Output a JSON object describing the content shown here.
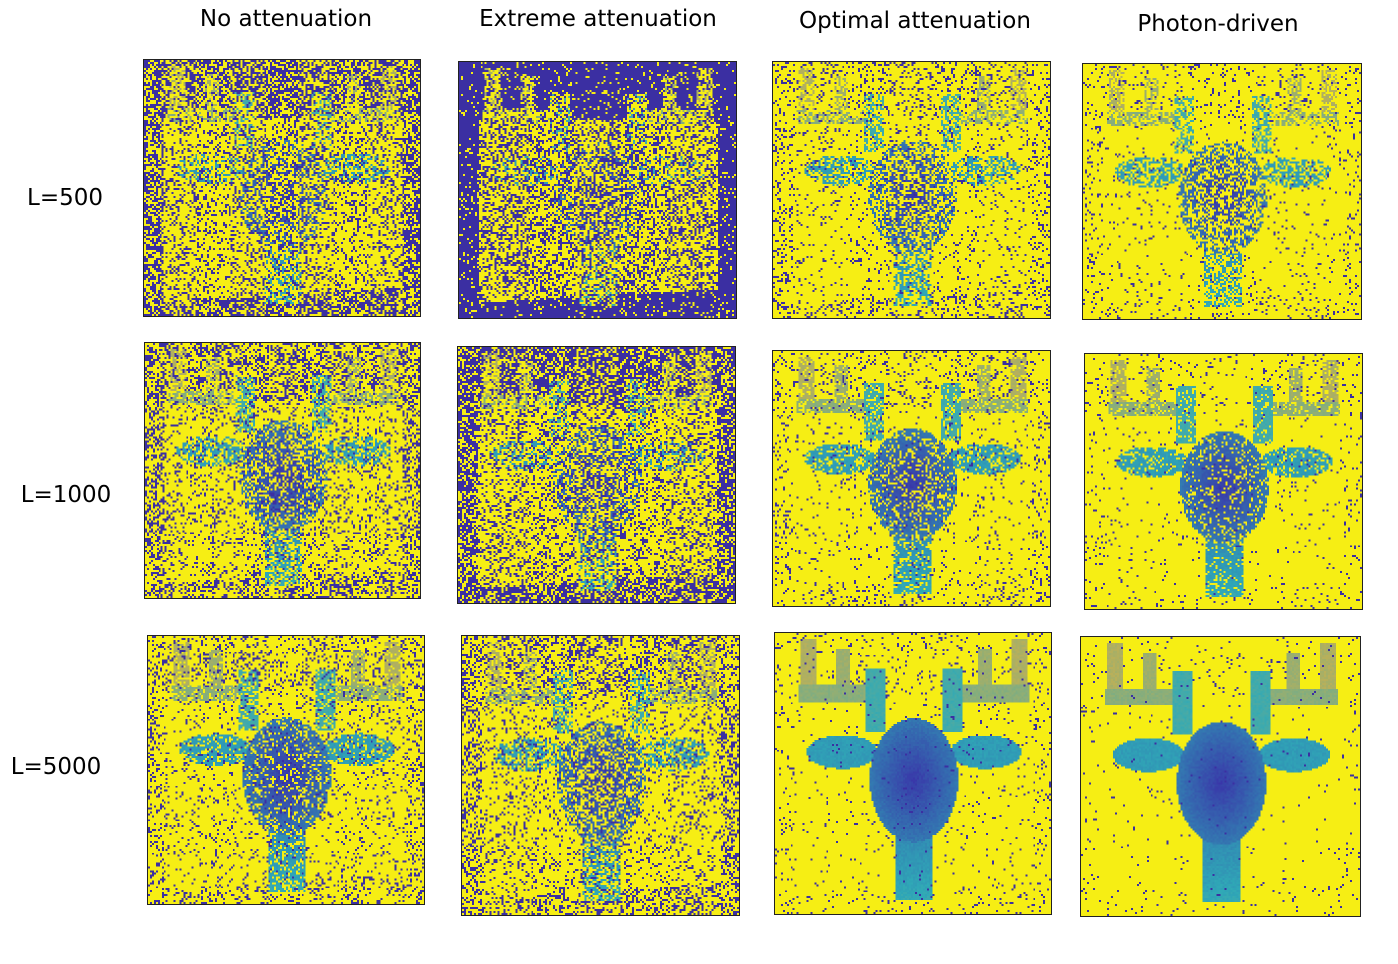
{
  "columns": [
    {
      "title": "No attenuation",
      "noise": 0.35
    },
    {
      "title": "Extreme attenuation",
      "noise": 0.55
    },
    {
      "title": "Optimal attenuation",
      "noise": 0.12
    },
    {
      "title": "Photon-driven",
      "noise": 0.06
    }
  ],
  "rows": [
    {
      "label": "L=500",
      "level": 0
    },
    {
      "label": "L=1000",
      "level": 1
    },
    {
      "label": "L=5000",
      "level": 2
    }
  ],
  "colors": {
    "background": "#f6ee14",
    "noise": "#3b2fa2",
    "near_depth": "#3a2ea8",
    "mid_depth": "#2fa9b7",
    "far_depth": "#e5b23c"
  }
}
